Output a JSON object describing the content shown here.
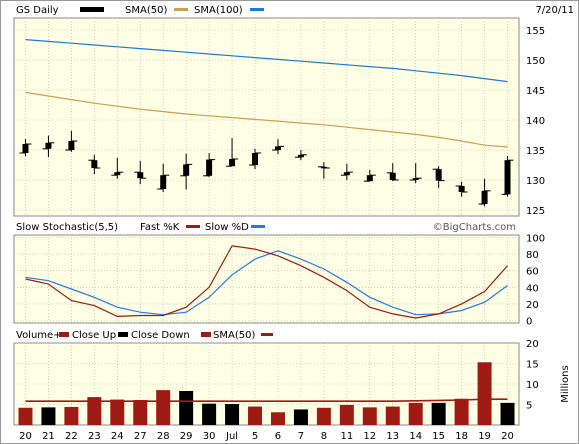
{
  "header": {
    "symbol_label": "GS Daily",
    "sma50_label": "SMA(50)",
    "sma100_label": "SMA(100)",
    "date": "7/20/11"
  },
  "stoch_header": {
    "title": "Slow Stochastic(5,5)",
    "fast_label": "Fast %K",
    "slow_label": "Slow %D",
    "watermark": "©BigCharts.com"
  },
  "volume_header": {
    "volume_label": "Volume+",
    "close_up_label": "Close Up",
    "close_down_label": "Close Down",
    "sma_label": "SMA(50)",
    "units_label": "Millions"
  },
  "colors": {
    "background": "#ffffe6",
    "price_bar": "#000000",
    "sma50": "#c8a050",
    "sma100": "#1e78dc",
    "fast_k": "#a01a14",
    "slow_d": "#2878e6",
    "volume_up": "#a01a14",
    "volume_down": "#000000",
    "volume_sma": "#a01a14",
    "grid": "#b4b4a0"
  },
  "chart_data": [
    {
      "type": "candlestick",
      "title": "GS Daily",
      "categories": [
        "20",
        "21",
        "22",
        "23",
        "24",
        "27",
        "28",
        "29",
        "30",
        "1",
        "5",
        "6",
        "7",
        "8",
        "11",
        "12",
        "13",
        "14",
        "15",
        "18",
        "19",
        "20"
      ],
      "x_tick_labels": [
        "20",
        "21",
        "22",
        "23",
        "24",
        "27",
        "28",
        "29",
        "30",
        "Jul",
        "5",
        "6",
        "7",
        "8",
        "11",
        "12",
        "13",
        "14",
        "15",
        "18",
        "19",
        "20"
      ],
      "ylim": [
        124,
        157
      ],
      "y_ticks": [
        125,
        130,
        135,
        140,
        145,
        150,
        155
      ],
      "grid": true,
      "series": [
        {
          "name": "GS Daily",
          "open": [
            134.5,
            135.2,
            135.0,
            133.3,
            130.8,
            131.3,
            128.5,
            130.7,
            130.7,
            132.3,
            132.5,
            135.0,
            133.8,
            132.2,
            130.8,
            129.8,
            131.2,
            130.0,
            131.8,
            129.0,
            126.0,
            127.6
          ],
          "high": [
            136.8,
            137.4,
            138.2,
            134.2,
            133.7,
            133.2,
            132.7,
            134.4,
            134.5,
            137.0,
            135.2,
            136.8,
            135.0,
            133.0,
            132.7,
            131.7,
            132.8,
            132.8,
            132.3,
            129.7,
            130.2,
            134.0
          ],
          "low": [
            134.0,
            133.8,
            134.7,
            131.0,
            130.2,
            129.3,
            128.0,
            128.4,
            130.5,
            132.3,
            131.8,
            134.3,
            133.3,
            130.2,
            130.0,
            129.8,
            129.8,
            129.5,
            128.7,
            127.2,
            125.6,
            127.2
          ],
          "close": [
            136.0,
            136.2,
            136.5,
            132.0,
            131.3,
            130.3,
            130.8,
            132.6,
            133.4,
            133.5,
            134.5,
            135.6,
            134.2,
            132.0,
            131.3,
            130.8,
            130.0,
            130.3,
            129.9,
            128.0,
            128.2,
            133.3
          ]
        },
        {
          "name": "SMA(50)",
          "values": [
            144.6,
            144.0,
            143.4,
            142.8,
            142.3,
            141.8,
            141.4,
            141.0,
            140.7,
            140.4,
            140.1,
            139.8,
            139.5,
            139.2,
            138.8,
            138.4,
            138.0,
            137.6,
            137.1,
            136.5,
            135.8,
            135.5
          ]
        },
        {
          "name": "SMA(100)",
          "values": [
            153.4,
            153.1,
            152.8,
            152.5,
            152.2,
            151.9,
            151.6,
            151.3,
            151.0,
            150.7,
            150.4,
            150.1,
            149.8,
            149.5,
            149.2,
            148.9,
            148.6,
            148.2,
            147.8,
            147.4,
            146.9,
            146.4
          ]
        }
      ]
    },
    {
      "type": "line",
      "title": "Slow Stochastic(5,5)",
      "categories": [
        "20",
        "21",
        "22",
        "23",
        "24",
        "27",
        "28",
        "29",
        "30",
        "1",
        "5",
        "6",
        "7",
        "8",
        "11",
        "12",
        "13",
        "14",
        "15",
        "18",
        "19",
        "20"
      ],
      "ylim": [
        0,
        100
      ],
      "y_ticks": [
        0,
        20,
        40,
        60,
        80,
        100
      ],
      "grid": true,
      "series": [
        {
          "name": "Fast %K",
          "values": [
            50,
            44,
            24,
            18,
            5,
            6,
            6,
            16,
            40,
            90,
            86,
            78,
            66,
            52,
            36,
            16,
            8,
            3,
            8,
            20,
            35,
            66
          ]
        },
        {
          "name": "Slow %D",
          "values": [
            52,
            48,
            38,
            28,
            16,
            10,
            7,
            10,
            28,
            55,
            74,
            84,
            74,
            62,
            46,
            28,
            16,
            7,
            8,
            12,
            22,
            42
          ]
        }
      ]
    },
    {
      "type": "bar",
      "title": "Volume+",
      "categories": [
        "20",
        "21",
        "22",
        "23",
        "24",
        "27",
        "28",
        "29",
        "30",
        "1",
        "5",
        "6",
        "7",
        "8",
        "11",
        "12",
        "13",
        "14",
        "15",
        "18",
        "19",
        "20"
      ],
      "ylim": [
        0,
        20
      ],
      "y_ticks": [
        5,
        10,
        15,
        20
      ],
      "ylabel": "Millions",
      "grid": true,
      "series": [
        {
          "name": "Volume",
          "values": [
            4.2,
            4.3,
            4.4,
            6.8,
            6.2,
            6.1,
            8.5,
            8.3,
            5.2,
            5.1,
            4.5,
            3.1,
            3.8,
            4.2,
            4.9,
            4.3,
            4.5,
            5.4,
            5.4,
            6.4,
            15.3,
            5.4
          ]
        },
        {
          "name": "SMA(50)",
          "values": [
            5.8,
            5.8,
            5.8,
            5.8,
            5.8,
            5.8,
            5.8,
            5.8,
            5.8,
            5.8,
            5.8,
            5.8,
            5.8,
            5.8,
            5.8,
            5.8,
            5.8,
            5.9,
            6.0,
            6.1,
            6.3,
            6.3
          ]
        }
      ],
      "direction": [
        "up",
        "down",
        "up",
        "up",
        "up",
        "up",
        "up",
        "down",
        "down",
        "down",
        "up",
        "up",
        "down",
        "up",
        "up",
        "up",
        "up",
        "up",
        "down",
        "up",
        "up",
        "down"
      ]
    }
  ]
}
